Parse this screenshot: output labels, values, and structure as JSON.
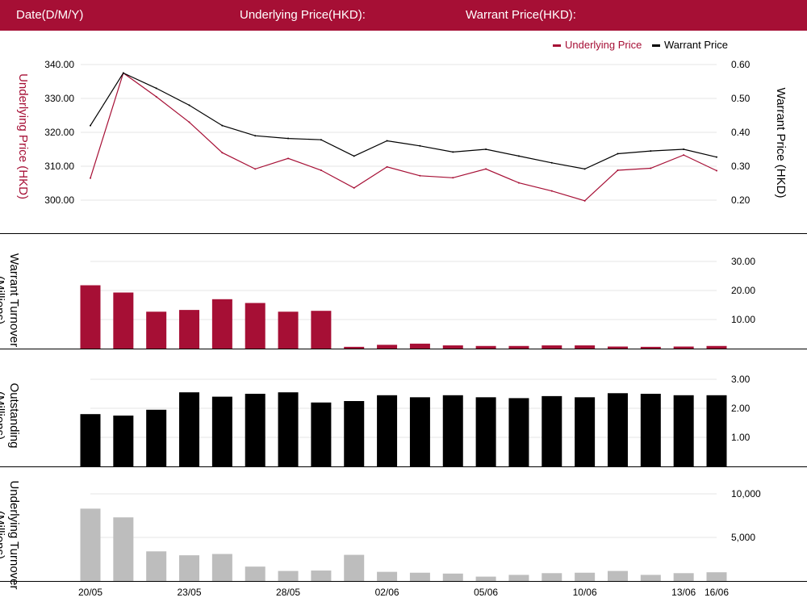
{
  "header": {
    "date_label": "Date(D/M/Y)",
    "underlying_label": "Underlying Price(HKD):",
    "warrant_label": "Warrant Price(HKD):"
  },
  "legend": {
    "underlying": "Underlying Price",
    "warrant": "Warrant Price"
  },
  "axis_titles": {
    "underlying_price": "Underlying Price (HKD)",
    "warrant_price": "Warrant  Price (HKD)",
    "warrant_turnover": "Warrant  Turnover (Millions)",
    "outstanding": "Outstanding (Millions)",
    "underlying_turnover": "Underlying Turnover (Millions)"
  },
  "colors": {
    "header_bg": "#a60f35",
    "underlying": "#a60f35",
    "warrant": "#000000",
    "warrant_turnover_bar": "#a60f35",
    "outstanding_bar": "#000000",
    "underlying_turnover_bar": "#bdbdbd",
    "grid": "#e6e6e6"
  },
  "chart_data": [
    {
      "type": "line",
      "x_ticks": [
        "20/05",
        "23/05",
        "28/05",
        "02/06",
        "05/06",
        "10/06",
        "13/06",
        "16/06"
      ],
      "series": [
        {
          "name": "Underlying Price",
          "axis": "left",
          "values": [
            306.5,
            337.5,
            330.5,
            323,
            314,
            309.2,
            312.3,
            308.8,
            303.6,
            309.8,
            307.2,
            306.6,
            309.2,
            305.1,
            302.7,
            299.8,
            308.8,
            309.4,
            313.3,
            308.7
          ]
        },
        {
          "name": "Warrant Price",
          "axis": "right",
          "values": [
            0.42,
            0.575,
            0.53,
            0.48,
            0.42,
            0.39,
            0.382,
            0.378,
            0.33,
            0.375,
            0.36,
            0.342,
            0.35,
            0.33,
            0.31,
            0.292,
            0.337,
            0.345,
            0.35,
            0.327
          ]
        }
      ],
      "ylim_left": [
        296,
        343
      ],
      "ylim_right": [
        0.16,
        0.62
      ],
      "left_ticks": [
        "300.00",
        "310.00",
        "320.00",
        "330.00",
        "340.00"
      ],
      "right_ticks": [
        "0.20",
        "0.30",
        "0.40",
        "0.50",
        "0.60"
      ],
      "grid": true,
      "legend": "top-right"
    },
    {
      "type": "bar",
      "name": "Warrant Turnover",
      "values": [
        21.8,
        19.3,
        12.7,
        13.3,
        17,
        15.7,
        12.7,
        13,
        0.6,
        1.3,
        1.7,
        1.1,
        0.9,
        0.9,
        1.1,
        1.1,
        0.7,
        0.6,
        0.7,
        0.9
      ],
      "ylim": [
        0,
        33
      ],
      "ticks": [
        "10.00",
        "20.00",
        "30.00"
      ],
      "grid": true
    },
    {
      "type": "bar",
      "name": "Outstanding",
      "values": [
        1.8,
        1.75,
        1.95,
        2.55,
        2.4,
        2.5,
        2.55,
        2.2,
        2.25,
        2.45,
        2.38,
        2.45,
        2.38,
        2.35,
        2.42,
        2.38,
        2.52,
        2.5,
        2.45,
        2.45
      ],
      "ylim": [
        0,
        3.3
      ],
      "ticks": [
        "1.00",
        "2.00",
        "3.00"
      ],
      "grid": true
    },
    {
      "type": "bar",
      "name": "Underlying Turnover",
      "values": [
        8300,
        7300,
        3400,
        2950,
        3100,
        1650,
        1150,
        1200,
        3000,
        1050,
        950,
        850,
        500,
        700,
        900,
        950,
        1150,
        700,
        900,
        1000
      ],
      "ylim": [
        0,
        10500
      ],
      "ticks": [
        "5,000",
        "10,000"
      ],
      "grid": true
    }
  ]
}
